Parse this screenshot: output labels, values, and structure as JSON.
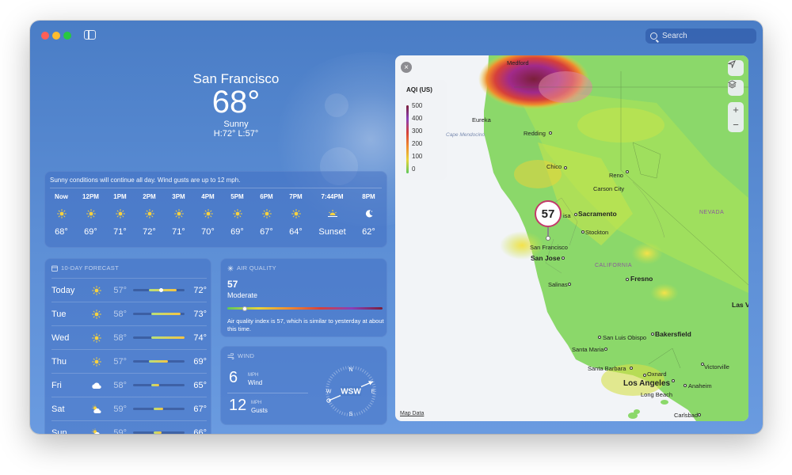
{
  "search": {
    "placeholder": "Search"
  },
  "current": {
    "city": "San Francisco",
    "temp": "68°",
    "condition": "Sunny",
    "hilo": "H:72°  L:57°"
  },
  "hourly": {
    "summary": "Sunny conditions will continue all day. Wind gusts are up to 12 mph.",
    "items": [
      {
        "time": "Now",
        "icon": "sun-icon",
        "value": "68°"
      },
      {
        "time": "12PM",
        "icon": "sun-icon",
        "value": "69°"
      },
      {
        "time": "1PM",
        "icon": "sun-icon",
        "value": "71°"
      },
      {
        "time": "2PM",
        "icon": "sun-icon",
        "value": "72°"
      },
      {
        "time": "3PM",
        "icon": "sun-icon",
        "value": "71°"
      },
      {
        "time": "4PM",
        "icon": "sun-icon",
        "value": "70°"
      },
      {
        "time": "5PM",
        "icon": "sun-icon",
        "value": "69°"
      },
      {
        "time": "6PM",
        "icon": "sun-icon",
        "value": "67°"
      },
      {
        "time": "7PM",
        "icon": "sun-icon",
        "value": "64°"
      },
      {
        "time": "7:44PM",
        "icon": "sunset-icon",
        "value": "Sunset"
      },
      {
        "time": "8PM",
        "icon": "moon-icon",
        "value": "62°"
      }
    ]
  },
  "ten_day": {
    "title": "10-DAY FORECAST",
    "rows": [
      {
        "day": "Today",
        "icon": "sun-icon",
        "low": "57°",
        "high": "72°",
        "range_start": 0.3,
        "range_end": 0.85,
        "current": 0.55
      },
      {
        "day": "Tue",
        "icon": "sun-icon",
        "low": "58°",
        "high": "73°",
        "range_start": 0.35,
        "range_end": 0.92
      },
      {
        "day": "Wed",
        "icon": "sun-icon",
        "low": "58°",
        "high": "74°",
        "range_start": 0.35,
        "range_end": 1.0
      },
      {
        "day": "Thu",
        "icon": "sun-icon",
        "low": "57°",
        "high": "69°",
        "range_start": 0.3,
        "range_end": 0.68
      },
      {
        "day": "Fri",
        "icon": "cloud-icon",
        "low": "58°",
        "high": "65°",
        "range_start": 0.35,
        "range_end": 0.5
      },
      {
        "day": "Sat",
        "icon": "partly-cloudy-icon",
        "low": "59°",
        "high": "67°",
        "range_start": 0.4,
        "range_end": 0.58
      },
      {
        "day": "Sun",
        "icon": "partly-cloudy-icon",
        "low": "59°",
        "high": "66°",
        "range_start": 0.4,
        "range_end": 0.55
      }
    ]
  },
  "air_quality": {
    "title": "AIR QUALITY",
    "value": "57",
    "category": "Moderate",
    "level": 0.11,
    "description": "Air quality index is 57, which is similar to yesterday at about this time."
  },
  "wind": {
    "title": "WIND",
    "speed": "6",
    "speed_unit": "MPH",
    "speed_label": "Wind",
    "gusts": "12",
    "gusts_unit": "MPH",
    "gusts_label": "Gusts",
    "direction": "WSW",
    "compass": {
      "n": "N",
      "e": "E",
      "s": "S",
      "w": "W"
    }
  },
  "map": {
    "legend_title": "AQI (US)",
    "legend_ticks": [
      "500",
      "400",
      "300",
      "200",
      "100",
      "0"
    ],
    "pin_value": "57",
    "attribution": "Map Data",
    "close_glyph": "×",
    "zoom_in": "+",
    "zoom_out": "−",
    "labels": {
      "medford": "Medford",
      "eureka": "Eureka",
      "cape": "Cape Mendocino",
      "redding": "Redding",
      "chico": "Chico",
      "reno": "Reno",
      "carson": "Carson City",
      "sacramento": "Sacramento",
      "stockton": "Stockton",
      "sf": "San Francisco",
      "sanjose": "San Jose",
      "nevada": "NEVADA",
      "california": "CALIFORNIA",
      "fresno": "Fresno",
      "salinas": "Salinas",
      "lasv": "Las V",
      "bakersfield": "Bakersfield",
      "slo": "San Luis Obispo",
      "santamaria": "Santa Maria",
      "santabarbara": "Santa Barbara",
      "oxnard": "Oxnard",
      "victorville": "Victorville",
      "la": "Los Angeles",
      "anaheim": "Anaheim",
      "longbeach": "Long Beach",
      "carlsbad": "Carlsbad",
      "isa": "isa"
    }
  },
  "colors": {
    "window_bg": "#5d8fd6",
    "aqi_ramp": [
      "#5ec85a",
      "#e7d43a",
      "#f08a2e",
      "#d6403a",
      "#8a3fb8",
      "#7b1f3a"
    ]
  }
}
